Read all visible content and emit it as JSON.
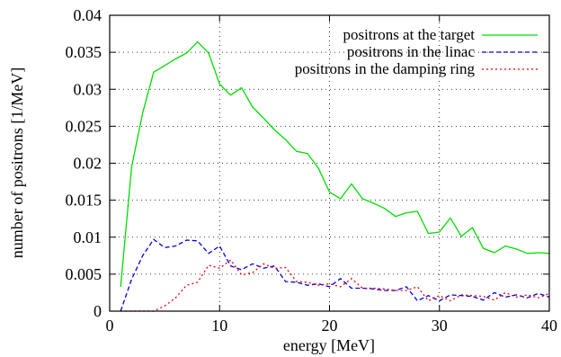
{
  "chart_data": {
    "type": "line",
    "xlabel": "energy  [MeV]",
    "ylabel": "number of positrons  [1/MeV]",
    "xlim": [
      0,
      40
    ],
    "ylim": [
      0,
      0.04
    ],
    "xticks": [
      0,
      10,
      20,
      30,
      40
    ],
    "yticks": [
      0,
      0.005,
      0.01,
      0.015,
      0.02,
      0.025,
      0.03,
      0.035,
      0.04
    ],
    "xtick_labels": [
      "0",
      "10",
      "20",
      "30",
      "40"
    ],
    "ytick_labels": [
      "0",
      "0.005",
      "0.01",
      "0.015",
      "0.02",
      "0.025",
      "0.03",
      "0.035",
      "0.04"
    ],
    "grid": "dotted at ticks",
    "legend_position": "top-right",
    "series": [
      {
        "name": "positrons at the target",
        "color": "#00dd00",
        "dash": "solid",
        "x": [
          1,
          2,
          3,
          4,
          5,
          6,
          7,
          8,
          9,
          10,
          11,
          12,
          13,
          14,
          15,
          16,
          17,
          18,
          19,
          20,
          21,
          22,
          23,
          24,
          25,
          26,
          27,
          28,
          29,
          30,
          31,
          32,
          33,
          34,
          35,
          36,
          37,
          38,
          39,
          40
        ],
        "y": [
          0.0033,
          0.0195,
          0.0268,
          0.0323,
          0.0332,
          0.0341,
          0.0349,
          0.0364,
          0.0349,
          0.0307,
          0.0292,
          0.0302,
          0.0276,
          0.0261,
          0.0245,
          0.0232,
          0.0216,
          0.0213,
          0.0193,
          0.0161,
          0.0152,
          0.0172,
          0.0152,
          0.0146,
          0.0139,
          0.0128,
          0.0133,
          0.0135,
          0.0105,
          0.0107,
          0.0126,
          0.0101,
          0.0113,
          0.0085,
          0.0079,
          0.0088,
          0.0084,
          0.0078,
          0.0079,
          0.0078
        ]
      },
      {
        "name": "positrons in the linac",
        "color": "#0000dd",
        "dash": "dashed",
        "x": [
          1,
          2,
          3,
          4,
          5,
          6,
          7,
          8,
          9,
          10,
          11,
          12,
          13,
          14,
          15,
          16,
          17,
          18,
          19,
          20,
          21,
          22,
          23,
          24,
          25,
          26,
          27,
          28,
          29,
          30,
          31,
          32,
          33,
          34,
          35,
          36,
          37,
          38,
          39,
          40
        ],
        "y": [
          0.0,
          0.0043,
          0.0075,
          0.0097,
          0.0086,
          0.0088,
          0.0096,
          0.0095,
          0.0078,
          0.0088,
          0.0061,
          0.0056,
          0.0064,
          0.0058,
          0.0061,
          0.004,
          0.0039,
          0.0035,
          0.0037,
          0.0033,
          0.0044,
          0.0031,
          0.0031,
          0.003,
          0.0028,
          0.0028,
          0.0033,
          0.0014,
          0.0021,
          0.0014,
          0.0022,
          0.0021,
          0.002,
          0.0015,
          0.0025,
          0.0019,
          0.0022,
          0.0018,
          0.0024,
          0.0019
        ]
      },
      {
        "name": "positrons in the damping ring",
        "color": "#ee0000",
        "dash": "dotted",
        "x": [
          1,
          2,
          3,
          4,
          5,
          6,
          7,
          8,
          9,
          10,
          11,
          12,
          13,
          14,
          15,
          16,
          17,
          18,
          19,
          20,
          21,
          22,
          23,
          24,
          25,
          26,
          27,
          28,
          29,
          30,
          31,
          32,
          33,
          34,
          35,
          36,
          37,
          38,
          39,
          40
        ],
        "y": [
          0.0,
          0.0,
          0.0,
          0.0,
          0.0007,
          0.0018,
          0.0035,
          0.0039,
          0.0062,
          0.0058,
          0.0069,
          0.0049,
          0.0052,
          0.0064,
          0.0058,
          0.0059,
          0.004,
          0.0039,
          0.0035,
          0.0037,
          0.0033,
          0.0044,
          0.0031,
          0.0031,
          0.003,
          0.0028,
          0.0028,
          0.0033,
          0.0014,
          0.0021,
          0.0014,
          0.0022,
          0.0021,
          0.002,
          0.0015,
          0.0025,
          0.0019,
          0.0022,
          0.0018,
          0.0024
        ]
      }
    ]
  }
}
